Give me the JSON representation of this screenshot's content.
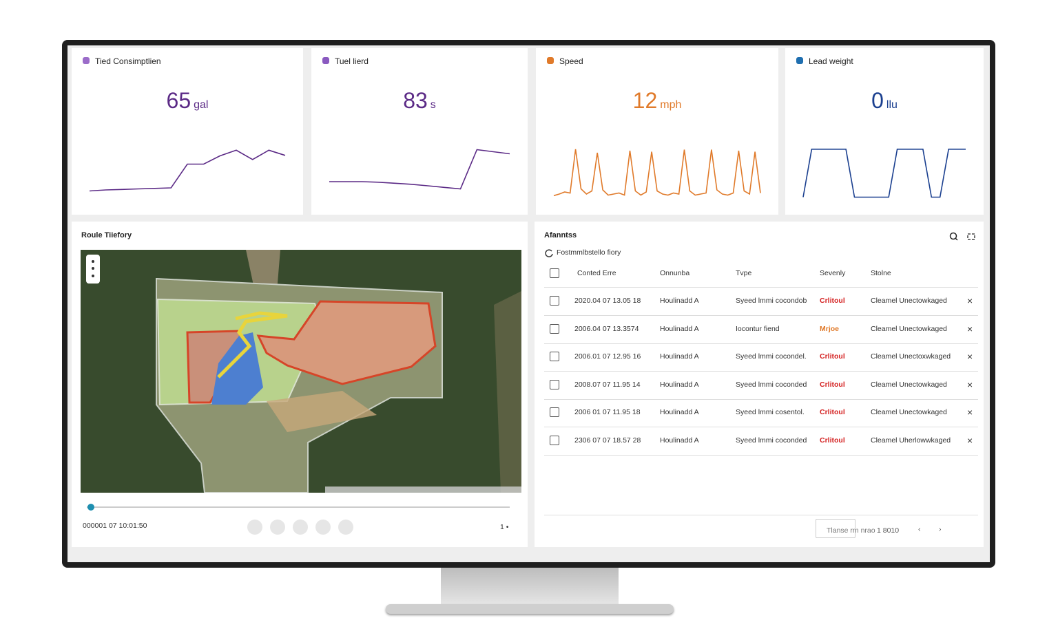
{
  "kpis": [
    {
      "title": "Tied Consimptlien",
      "value": 65,
      "unit": "gal",
      "color": "#5b2a86",
      "icon_color": "#9b6cc9",
      "trend": [
        14,
        16,
        17,
        18,
        19,
        20,
        66,
        66,
        82,
        93,
        75,
        93,
        83
      ]
    },
    {
      "title": "Tuel lierd",
      "value": 83,
      "unit": "s",
      "color": "#5b2a86",
      "icon_color": "#8a5ac0",
      "trend": [
        32,
        32,
        32,
        31,
        29,
        27,
        24,
        21,
        18,
        94,
        90,
        86
      ]
    },
    {
      "title": "Speed",
      "value": 12,
      "unit": "mph",
      "color": "#e07a2a",
      "icon_color": "#e07a2a",
      "trend": [
        5,
        8,
        12,
        10,
        95,
        18,
        8,
        14,
        88,
        16,
        6,
        8,
        10,
        6,
        92,
        14,
        6,
        12,
        90,
        14,
        8,
        6,
        10,
        8,
        94,
        14,
        6,
        8,
        10,
        94,
        16,
        8,
        6,
        10,
        92,
        14,
        8,
        90,
        10
      ]
    },
    {
      "title": "Lead weight",
      "value": 0,
      "unit": "llu",
      "color": "#1a3f8f",
      "icon_color": "#1f6fb0",
      "trend": [
        2,
        95,
        95,
        95,
        95,
        95,
        2,
        2,
        2,
        2,
        2,
        95,
        95,
        95,
        95,
        2,
        2,
        95,
        95,
        95
      ]
    }
  ],
  "route": {
    "title": "Roule Tiiefory",
    "timestamp": "000001 07 10:01:50",
    "speed": "1 •"
  },
  "alerts": {
    "title": "Afanntss",
    "filter": "Fostmmlbstello fiory",
    "columns": [
      "Conted Erre",
      "Onnunba",
      "Tvpe",
      "Sevenly",
      "Stolne"
    ],
    "rows": [
      {
        "time": "2020.04 07 13.05 18",
        "unit": "Houlinadd A",
        "type": "Syeed lmmi cocondob",
        "severity": "Crlitoul",
        "severity_color": "#d42020",
        "status": "Cleamel Unectowkaged"
      },
      {
        "time": "2006.04 07 13.3574",
        "unit": "Houlinadd A",
        "type": "Iocontur fiend",
        "severity": "Mrjoe",
        "severity_color": "#e07a2a",
        "status": "Cleamel Unectowkaged"
      },
      {
        "time": "2006.01 07 12.95 16",
        "unit": "Houlinadd A",
        "type": "Syeed lmmi cocondel.",
        "severity": "Crlitoul",
        "severity_color": "#d42020",
        "status": "Cleamel Unectoxwkaged"
      },
      {
        "time": "2008.07 07 11.95 14",
        "unit": "Houlinadd A",
        "type": "Syeed lmmi coconded",
        "severity": "Crlitoul",
        "severity_color": "#d42020",
        "status": "Cleamel Unectowkaged"
      },
      {
        "time": "2006 01 07 11.95 18",
        "unit": "Houlinadd A",
        "type": "Syeed lmmi cosentol.",
        "severity": "Crlitoul",
        "severity_color": "#d42020",
        "status": "Cleamel Unectowkaged"
      },
      {
        "time": "2306 07 07 18.57 28",
        "unit": "Houlinadd A",
        "type": "Syeed lmmi coconded",
        "severity": "Crlitoul",
        "severity_color": "#d42020",
        "status": "Cleamel Uherlowwkaged"
      }
    ],
    "rows_per_page": "Tlanse rm nrao",
    "page": "1 8010"
  }
}
